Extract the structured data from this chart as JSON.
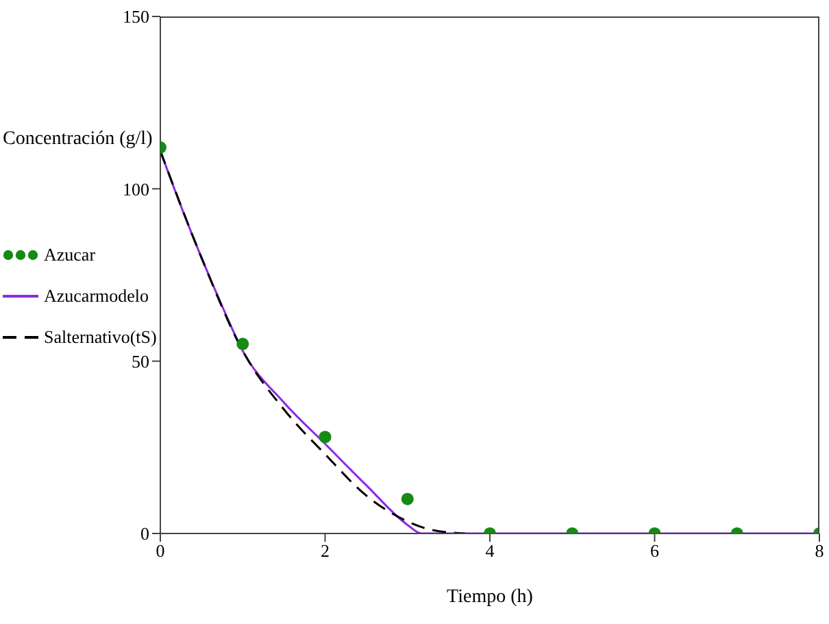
{
  "chart_data": {
    "type": "line",
    "xlabel": "Tiempo (h)",
    "ylabel": "Concentración (g/l)",
    "xlim": [
      0,
      8
    ],
    "xticks": [
      0,
      2,
      4,
      6,
      8
    ],
    "ylim": [
      0,
      150
    ],
    "yticks": [
      0,
      50,
      100,
      150
    ],
    "grid": false,
    "legend": "left",
    "series": [
      {
        "name": "Azucar",
        "type": "scatter",
        "marker": "circle",
        "color": "#168a16",
        "x": [
          0,
          1,
          2,
          3,
          4,
          5,
          6,
          7,
          8
        ],
        "values": [
          112,
          55,
          28,
          10,
          0,
          0,
          0,
          0,
          0
        ]
      },
      {
        "name": "Azucarmodelo",
        "type": "line",
        "marker": "none",
        "line_style": "solid",
        "color": "#8a2be2",
        "x": [
          0,
          0.25,
          0.5,
          0.75,
          1,
          1.5,
          2,
          2.5,
          3,
          3.17,
          8
        ],
        "values": [
          111,
          95,
          80,
          66,
          53,
          38,
          26,
          14,
          2.5,
          0,
          0
        ]
      },
      {
        "name": "Salternativo(tS)",
        "type": "line",
        "marker": "none",
        "line_style": "dashed",
        "color": "#000000",
        "x": [
          0,
          0.5,
          1,
          1.5,
          2,
          2.5,
          3,
          3.3,
          3.7
        ],
        "values": [
          111,
          80,
          53,
          36,
          23,
          11,
          3.5,
          1,
          0
        ]
      }
    ]
  }
}
